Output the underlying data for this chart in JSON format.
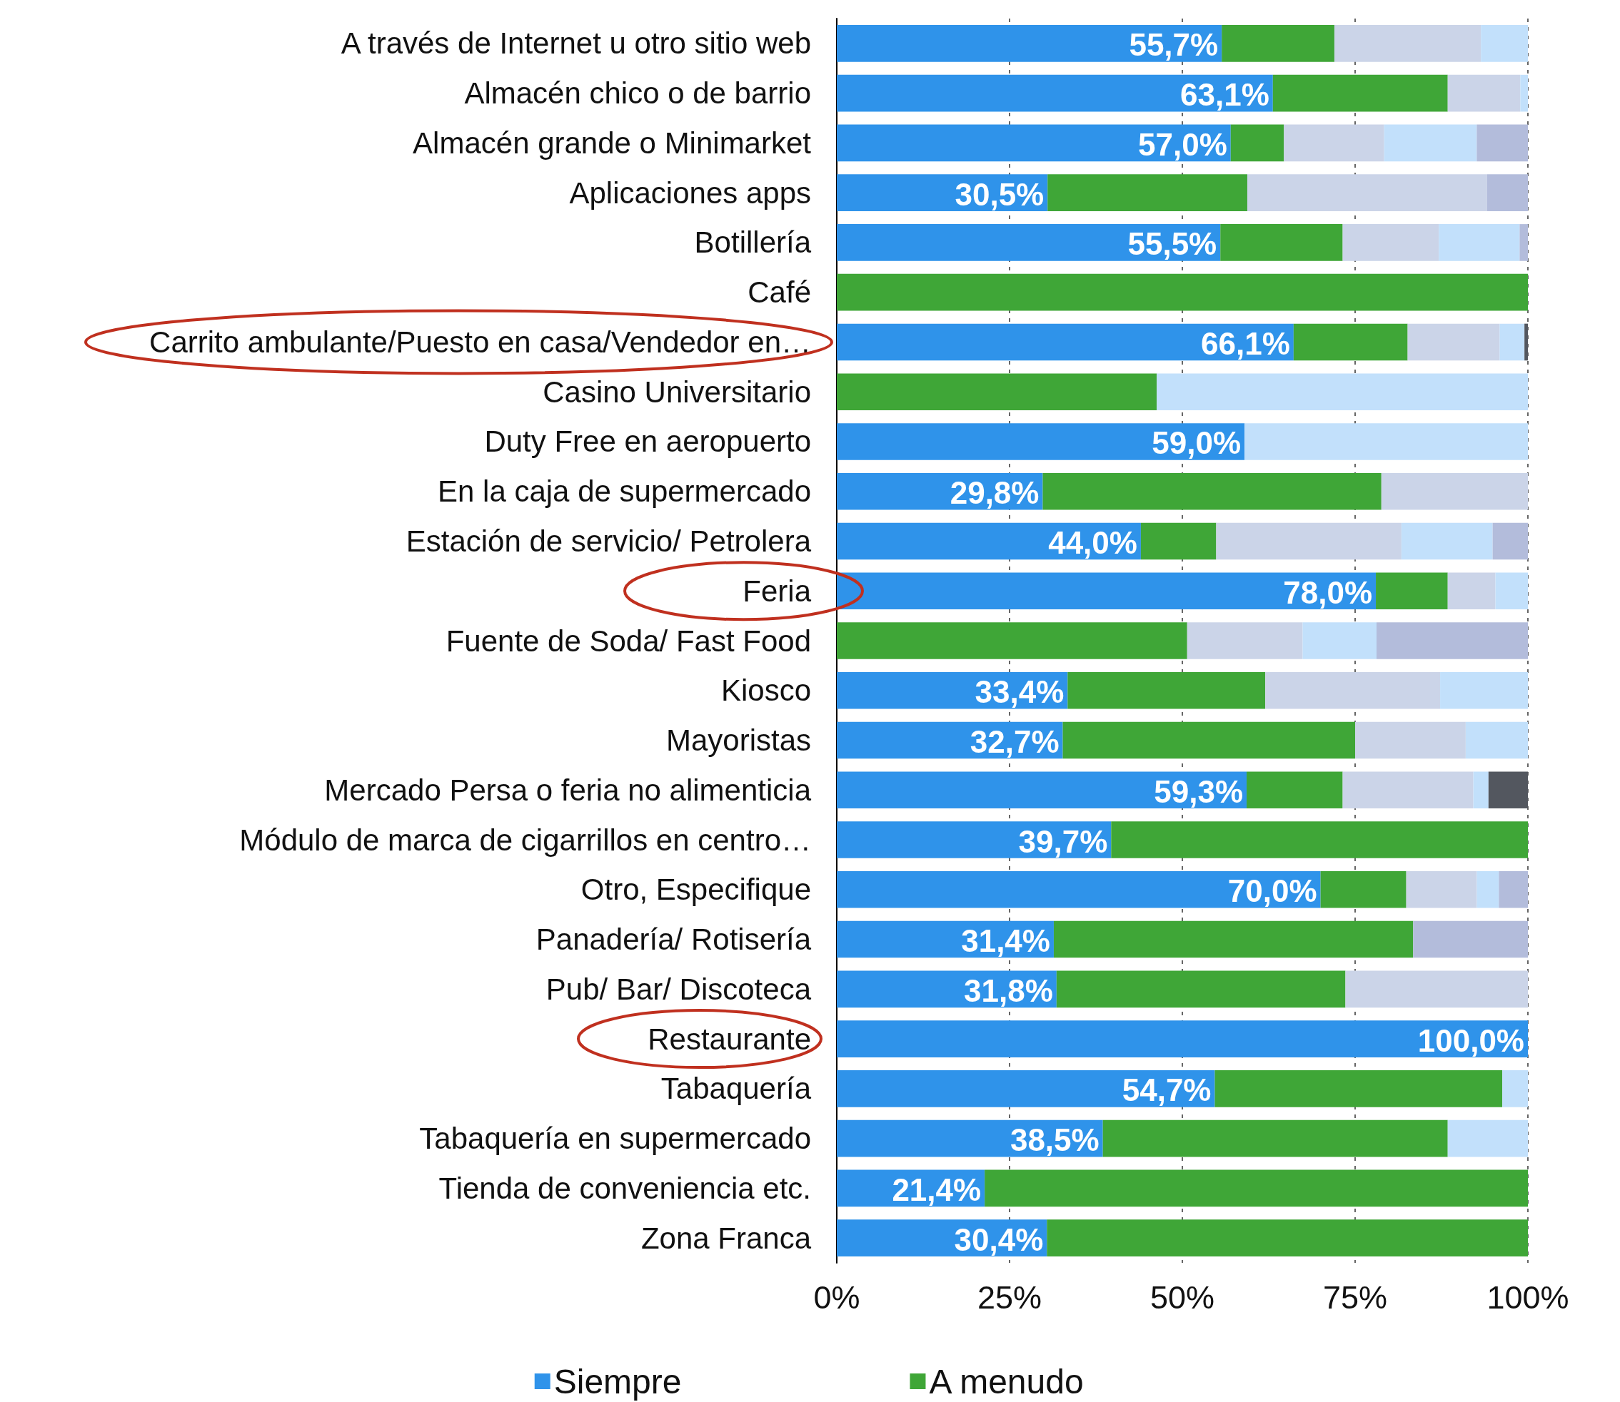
{
  "chart_data": {
    "type": "bar",
    "orientation": "horizontal",
    "stacked": true,
    "categories": [
      "A través de Internet u otro sitio web",
      "Almacén chico o de barrio",
      "Almacén grande o Minimarket",
      "Aplicaciones apps",
      "Botillería",
      "Café",
      "Carrito ambulante/Puesto en casa/Vendedor en…",
      "Casino Universitario",
      "Duty Free en aeropuerto",
      "En la caja de supermercado",
      "Estación de servicio/ Petrolera",
      "Feria",
      "Fuente de Soda/ Fast Food",
      "Kiosco",
      "Mayoristas",
      "Mercado Persa o feria no alimenticia",
      "Módulo de marca de cigarrillos en centro…",
      "Otro, Especifique",
      "Panadería/ Rotisería",
      "Pub/ Bar/ Discoteca",
      "Restaurante",
      "Tabaquería",
      "Tabaquería en supermercado",
      "Tienda de conveniencia etc.",
      "Zona Franca"
    ],
    "series": [
      {
        "name": "Siempre",
        "color": "#2f93ea",
        "values": [
          55.7,
          63.1,
          57.0,
          30.5,
          55.5,
          0,
          66.1,
          0,
          59.0,
          29.8,
          44.0,
          78.0,
          0,
          33.4,
          32.7,
          59.3,
          39.7,
          70.0,
          31.4,
          31.8,
          100.0,
          54.7,
          38.5,
          21.4,
          30.4
        ],
        "value_labels": [
          "55,7%",
          "63,1%",
          "57,0%",
          "30,5%",
          "55,5%",
          null,
          "66,1%",
          null,
          "59,0%",
          "29,8%",
          "44,0%",
          "78,0%",
          null,
          "33,4%",
          "32,7%",
          "59,3%",
          "39,7%",
          "70,0%",
          "31,4%",
          "31,8%",
          "100,0%",
          "54,7%",
          "38,5%",
          "21,4%",
          "30,4%"
        ]
      },
      {
        "name": "A menudo",
        "color": "#3fa637",
        "values": [
          16.3,
          25.3,
          7.7,
          28.9,
          17.7,
          100,
          16.5,
          46.3,
          0,
          49.0,
          10.9,
          10.4,
          50.7,
          28.6,
          42.3,
          13.9,
          60.3,
          12.4,
          52.0,
          41.8,
          0,
          41.6,
          49.9,
          78.6,
          69.6
        ]
      },
      {
        "color": "#cbd4e8",
        "values": [
          21.2,
          10.5,
          14.5,
          34.7,
          13.9,
          0,
          13.3,
          0,
          0,
          21.2,
          26.8,
          6.9,
          16.7,
          25.3,
          16.0,
          18.9,
          0,
          10.2,
          0,
          26.4,
          0,
          0,
          0,
          0,
          0
        ]
      },
      {
        "color": "#c2e0fb",
        "values": [
          6.8,
          1.1,
          13.4,
          0,
          11.7,
          0,
          3.6,
          53.7,
          41.0,
          0,
          13.2,
          4.7,
          10.7,
          12.7,
          9.0,
          2.2,
          0,
          3.2,
          0,
          0,
          0,
          3.7,
          11.6,
          0,
          0
        ]
      },
      {
        "color": "#b3bcdb",
        "values": [
          0,
          0,
          7.4,
          5.9,
          1.2,
          0,
          0,
          0,
          0,
          0,
          5.1,
          0,
          21.9,
          0,
          0,
          0,
          0,
          4.2,
          16.6,
          0,
          0,
          0,
          0,
          0,
          0
        ]
      },
      {
        "color": "#53575f",
        "values": [
          0,
          0,
          0,
          0,
          0,
          0,
          0.5,
          0,
          0,
          0,
          0,
          0,
          0,
          0,
          0,
          5.7,
          0,
          0,
          0,
          0,
          0,
          0,
          0,
          0,
          0
        ]
      }
    ],
    "xlim": [
      0,
      100
    ],
    "xticks": [
      {
        "value": 0,
        "label": "0%"
      },
      {
        "value": 25,
        "label": "25%"
      },
      {
        "value": 50,
        "label": "50%"
      },
      {
        "value": 75,
        "label": "75%"
      },
      {
        "value": 100,
        "label": "100%"
      }
    ],
    "grid": "x",
    "legend": "bottom"
  }
}
